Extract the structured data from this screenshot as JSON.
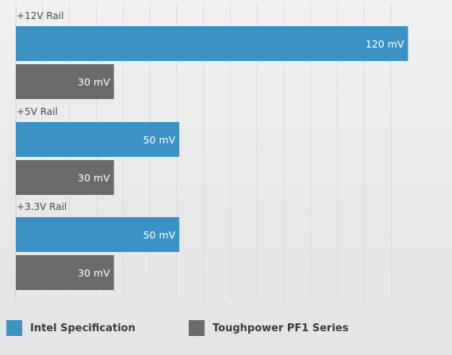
{
  "chart_data": {
    "type": "bar",
    "orientation": "horizontal",
    "categories": [
      "+12V Rail",
      "+5V Rail",
      "+3.3V Rail"
    ],
    "series": [
      {
        "name": "Intel Specification",
        "values": [
          120,
          50,
          50
        ],
        "color": "#3a93c4"
      },
      {
        "name": "Toughpower PF1 Series",
        "values": [
          30,
          30,
          30
        ],
        "color": "#6a6a6c"
      }
    ],
    "value_unit": "mV",
    "data_labels": [
      [
        "120 mV",
        "50 mV",
        "50 mV"
      ],
      [
        "30 mV",
        "30 mV",
        "30 mV"
      ]
    ],
    "xlim": [
      0,
      132
    ],
    "grid": true,
    "legend_position": "bottom"
  }
}
